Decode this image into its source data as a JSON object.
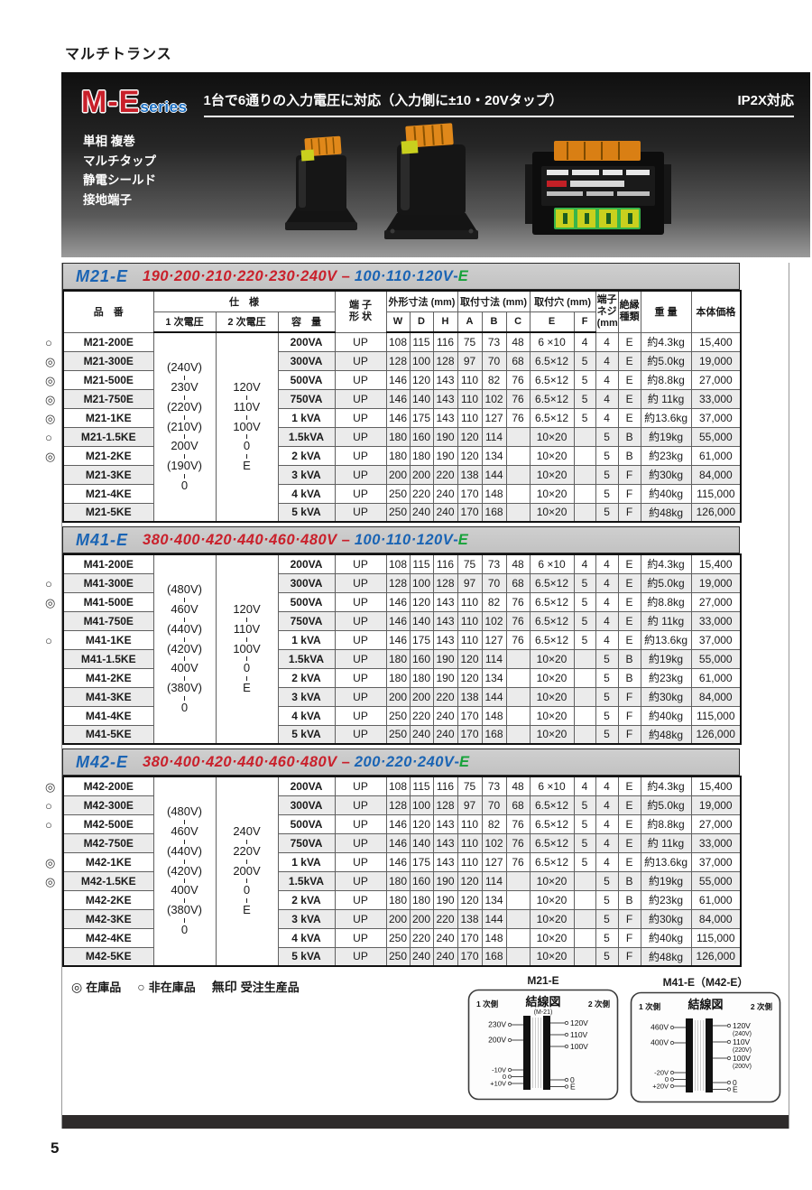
{
  "page": {
    "title": "マルチトランス",
    "page_number": "5"
  },
  "hero": {
    "logo_main": "M-E",
    "logo_sub": "series",
    "tagline": "1台で6通りの入力電圧に対応（入力側に±10・20Vタップ）",
    "ip": "IP2X対応",
    "features": [
      "単相 複巻",
      "マルチタップ",
      "静電シールド",
      "接地端子"
    ]
  },
  "columns": {
    "part": "品　番",
    "spec": "仕　様",
    "v1": "1 次電圧",
    "v2": "2 次電圧",
    "cap": "容　量",
    "terminal_l1": "端 子",
    "terminal_l2": "形 状",
    "dim": "外形寸法 (mm)",
    "w": "W",
    "d": "D",
    "h": "H",
    "mount": "取付寸法 (mm)",
    "a": "A",
    "b": "B",
    "c": "C",
    "hole": "取付穴 (mm)",
    "e": "E",
    "f": "F",
    "screw_l1": "端子",
    "screw_l2": "ネジ",
    "screw_l3": "(mm)",
    "ins_l1": "絶縁",
    "ins_l2": "種類",
    "weight": "重 量",
    "price": "本体価格"
  },
  "tables": [
    {
      "model": "M21-E",
      "primary_range": "190·200·210·220·230·240V",
      "secondary_range": "100·110·120V",
      "suffix": "E",
      "primary_taps": [
        "(240V)",
        "230V",
        "(220V)",
        "(210V)",
        "200V",
        "(190V)",
        "0"
      ],
      "secondary_taps": [
        "120V",
        "110V",
        "100V",
        "0",
        "E"
      ],
      "rows": [
        {
          "mark": "○",
          "part": "M21-200E",
          "cap": "200VA",
          "term": "UP",
          "w": "108",
          "d": "115",
          "h": "116",
          "a": "75",
          "b": "73",
          "c": "48",
          "e": "6 ×10",
          "f": "4",
          "screw": "4",
          "ins": "E",
          "weight": "約4.3kg",
          "price": "15,400"
        },
        {
          "mark": "◎",
          "part": "M21-300E",
          "cap": "300VA",
          "term": "UP",
          "w": "128",
          "d": "100",
          "h": "128",
          "a": "97",
          "b": "70",
          "c": "68",
          "e": "6.5×12",
          "f": "5",
          "screw": "4",
          "ins": "E",
          "weight": "約5.0kg",
          "price": "19,000"
        },
        {
          "mark": "◎",
          "part": "M21-500E",
          "cap": "500VA",
          "term": "UP",
          "w": "146",
          "d": "120",
          "h": "143",
          "a": "110",
          "b": "82",
          "c": "76",
          "e": "6.5×12",
          "f": "5",
          "screw": "4",
          "ins": "E",
          "weight": "約8.8kg",
          "price": "27,000"
        },
        {
          "mark": "◎",
          "part": "M21-750E",
          "cap": "750VA",
          "term": "UP",
          "w": "146",
          "d": "140",
          "h": "143",
          "a": "110",
          "b": "102",
          "c": "76",
          "e": "6.5×12",
          "f": "5",
          "screw": "4",
          "ins": "E",
          "weight": "約 11kg",
          "price": "33,000"
        },
        {
          "mark": "◎",
          "part": "M21-1KE",
          "cap": "1 kVA",
          "term": "UP",
          "w": "146",
          "d": "175",
          "h": "143",
          "a": "110",
          "b": "127",
          "c": "76",
          "e": "6.5×12",
          "f": "5",
          "screw": "4",
          "ins": "E",
          "weight": "約13.6kg",
          "price": "37,000"
        },
        {
          "mark": "○",
          "part": "M21-1.5KE",
          "cap": "1.5kVA",
          "term": "UP",
          "w": "180",
          "d": "160",
          "h": "190",
          "a": "120",
          "b": "114",
          "c": "",
          "e": "10×20",
          "f": "",
          "screw": "5",
          "ins": "B",
          "weight": "約19kg",
          "price": "55,000"
        },
        {
          "mark": "◎",
          "part": "M21-2KE",
          "cap": "2 kVA",
          "term": "UP",
          "w": "180",
          "d": "180",
          "h": "190",
          "a": "120",
          "b": "134",
          "c": "",
          "e": "10×20",
          "f": "",
          "screw": "5",
          "ins": "B",
          "weight": "約23kg",
          "price": "61,000"
        },
        {
          "mark": "",
          "part": "M21-3KE",
          "cap": "3 kVA",
          "term": "UP",
          "w": "200",
          "d": "200",
          "h": "220",
          "a": "138",
          "b": "144",
          "c": "",
          "e": "10×20",
          "f": "",
          "screw": "5",
          "ins": "F",
          "weight": "約30kg",
          "price": "84,000"
        },
        {
          "mark": "",
          "part": "M21-4KE",
          "cap": "4 kVA",
          "term": "UP",
          "w": "250",
          "d": "220",
          "h": "240",
          "a": "170",
          "b": "148",
          "c": "",
          "e": "10×20",
          "f": "",
          "screw": "5",
          "ins": "F",
          "weight": "約40kg",
          "price": "115,000"
        },
        {
          "mark": "",
          "part": "M21-5KE",
          "cap": "5 kVA",
          "term": "UP",
          "w": "250",
          "d": "240",
          "h": "240",
          "a": "170",
          "b": "168",
          "c": "",
          "e": "10×20",
          "f": "",
          "screw": "5",
          "ins": "F",
          "weight": "約48kg",
          "price": "126,000"
        }
      ]
    },
    {
      "model": "M41-E",
      "primary_range": "380·400·420·440·460·480V",
      "secondary_range": "100·110·120V",
      "suffix": "E",
      "primary_taps": [
        "(480V)",
        "460V",
        "(440V)",
        "(420V)",
        "400V",
        "(380V)",
        "0"
      ],
      "secondary_taps": [
        "120V",
        "110V",
        "100V",
        "0",
        "E"
      ],
      "rows": [
        {
          "mark": "",
          "part": "M41-200E",
          "cap": "200VA",
          "term": "UP",
          "w": "108",
          "d": "115",
          "h": "116",
          "a": "75",
          "b": "73",
          "c": "48",
          "e": "6 ×10",
          "f": "4",
          "screw": "4",
          "ins": "E",
          "weight": "約4.3kg",
          "price": "15,400"
        },
        {
          "mark": "○",
          "part": "M41-300E",
          "cap": "300VA",
          "term": "UP",
          "w": "128",
          "d": "100",
          "h": "128",
          "a": "97",
          "b": "70",
          "c": "68",
          "e": "6.5×12",
          "f": "5",
          "screw": "4",
          "ins": "E",
          "weight": "約5.0kg",
          "price": "19,000"
        },
        {
          "mark": "◎",
          "part": "M41-500E",
          "cap": "500VA",
          "term": "UP",
          "w": "146",
          "d": "120",
          "h": "143",
          "a": "110",
          "b": "82",
          "c": "76",
          "e": "6.5×12",
          "f": "5",
          "screw": "4",
          "ins": "E",
          "weight": "約8.8kg",
          "price": "27,000"
        },
        {
          "mark": "",
          "part": "M41-750E",
          "cap": "750VA",
          "term": "UP",
          "w": "146",
          "d": "140",
          "h": "143",
          "a": "110",
          "b": "102",
          "c": "76",
          "e": "6.5×12",
          "f": "5",
          "screw": "4",
          "ins": "E",
          "weight": "約 11kg",
          "price": "33,000"
        },
        {
          "mark": "○",
          "part": "M41-1KE",
          "cap": "1 kVA",
          "term": "UP",
          "w": "146",
          "d": "175",
          "h": "143",
          "a": "110",
          "b": "127",
          "c": "76",
          "e": "6.5×12",
          "f": "5",
          "screw": "4",
          "ins": "E",
          "weight": "約13.6kg",
          "price": "37,000"
        },
        {
          "mark": "",
          "part": "M41-1.5KE",
          "cap": "1.5kVA",
          "term": "UP",
          "w": "180",
          "d": "160",
          "h": "190",
          "a": "120",
          "b": "114",
          "c": "",
          "e": "10×20",
          "f": "",
          "screw": "5",
          "ins": "B",
          "weight": "約19kg",
          "price": "55,000"
        },
        {
          "mark": "",
          "part": "M41-2KE",
          "cap": "2 kVA",
          "term": "UP",
          "w": "180",
          "d": "180",
          "h": "190",
          "a": "120",
          "b": "134",
          "c": "",
          "e": "10×20",
          "f": "",
          "screw": "5",
          "ins": "B",
          "weight": "約23kg",
          "price": "61,000"
        },
        {
          "mark": "",
          "part": "M41-3KE",
          "cap": "3 kVA",
          "term": "UP",
          "w": "200",
          "d": "200",
          "h": "220",
          "a": "138",
          "b": "144",
          "c": "",
          "e": "10×20",
          "f": "",
          "screw": "5",
          "ins": "F",
          "weight": "約30kg",
          "price": "84,000"
        },
        {
          "mark": "",
          "part": "M41-4KE",
          "cap": "4 kVA",
          "term": "UP",
          "w": "250",
          "d": "220",
          "h": "240",
          "a": "170",
          "b": "148",
          "c": "",
          "e": "10×20",
          "f": "",
          "screw": "5",
          "ins": "F",
          "weight": "約40kg",
          "price": "115,000"
        },
        {
          "mark": "",
          "part": "M41-5KE",
          "cap": "5 kVA",
          "term": "UP",
          "w": "250",
          "d": "240",
          "h": "240",
          "a": "170",
          "b": "168",
          "c": "",
          "e": "10×20",
          "f": "",
          "screw": "5",
          "ins": "F",
          "weight": "約48kg",
          "price": "126,000"
        }
      ]
    },
    {
      "model": "M42-E",
      "primary_range": "380·400·420·440·460·480V",
      "secondary_range": "200·220·240V",
      "suffix": "E",
      "primary_taps": [
        "(480V)",
        "460V",
        "(440V)",
        "(420V)",
        "400V",
        "(380V)",
        "0"
      ],
      "secondary_taps": [
        "240V",
        "220V",
        "200V",
        "0",
        "E"
      ],
      "rows": [
        {
          "mark": "◎",
          "part": "M42-200E",
          "cap": "200VA",
          "term": "UP",
          "w": "108",
          "d": "115",
          "h": "116",
          "a": "75",
          "b": "73",
          "c": "48",
          "e": "6 ×10",
          "f": "4",
          "screw": "4",
          "ins": "E",
          "weight": "約4.3kg",
          "price": "15,400"
        },
        {
          "mark": "○",
          "part": "M42-300E",
          "cap": "300VA",
          "term": "UP",
          "w": "128",
          "d": "100",
          "h": "128",
          "a": "97",
          "b": "70",
          "c": "68",
          "e": "6.5×12",
          "f": "5",
          "screw": "4",
          "ins": "E",
          "weight": "約5.0kg",
          "price": "19,000"
        },
        {
          "mark": "○",
          "part": "M42-500E",
          "cap": "500VA",
          "term": "UP",
          "w": "146",
          "d": "120",
          "h": "143",
          "a": "110",
          "b": "82",
          "c": "76",
          "e": "6.5×12",
          "f": "5",
          "screw": "4",
          "ins": "E",
          "weight": "約8.8kg",
          "price": "27,000"
        },
        {
          "mark": "",
          "part": "M42-750E",
          "cap": "750VA",
          "term": "UP",
          "w": "146",
          "d": "140",
          "h": "143",
          "a": "110",
          "b": "102",
          "c": "76",
          "e": "6.5×12",
          "f": "5",
          "screw": "4",
          "ins": "E",
          "weight": "約 11kg",
          "price": "33,000"
        },
        {
          "mark": "◎",
          "part": "M42-1KE",
          "cap": "1 kVA",
          "term": "UP",
          "w": "146",
          "d": "175",
          "h": "143",
          "a": "110",
          "b": "127",
          "c": "76",
          "e": "6.5×12",
          "f": "5",
          "screw": "4",
          "ins": "E",
          "weight": "約13.6kg",
          "price": "37,000"
        },
        {
          "mark": "◎",
          "part": "M42-1.5KE",
          "cap": "1.5kVA",
          "term": "UP",
          "w": "180",
          "d": "160",
          "h": "190",
          "a": "120",
          "b": "114",
          "c": "",
          "e": "10×20",
          "f": "",
          "screw": "5",
          "ins": "B",
          "weight": "約19kg",
          "price": "55,000"
        },
        {
          "mark": "",
          "part": "M42-2KE",
          "cap": "2 kVA",
          "term": "UP",
          "w": "180",
          "d": "180",
          "h": "190",
          "a": "120",
          "b": "134",
          "c": "",
          "e": "10×20",
          "f": "",
          "screw": "5",
          "ins": "B",
          "weight": "約23kg",
          "price": "61,000"
        },
        {
          "mark": "",
          "part": "M42-3KE",
          "cap": "3 kVA",
          "term": "UP",
          "w": "200",
          "d": "200",
          "h": "220",
          "a": "138",
          "b": "144",
          "c": "",
          "e": "10×20",
          "f": "",
          "screw": "5",
          "ins": "F",
          "weight": "約30kg",
          "price": "84,000"
        },
        {
          "mark": "",
          "part": "M42-4KE",
          "cap": "4 kVA",
          "term": "UP",
          "w": "250",
          "d": "220",
          "h": "240",
          "a": "170",
          "b": "148",
          "c": "",
          "e": "10×20",
          "f": "",
          "screw": "5",
          "ins": "F",
          "weight": "約40kg",
          "price": "115,000"
        },
        {
          "mark": "",
          "part": "M42-5KE",
          "cap": "5 kVA",
          "term": "UP",
          "w": "250",
          "d": "240",
          "h": "240",
          "a": "170",
          "b": "168",
          "c": "",
          "e": "10×20",
          "f": "",
          "screw": "5",
          "ins": "F",
          "weight": "約48kg",
          "price": "126,000"
        }
      ]
    }
  ],
  "legend": [
    {
      "mark": "◎",
      "label": "在庫品"
    },
    {
      "mark": "○",
      "label": "非在庫品"
    },
    {
      "mark": "無印",
      "label": "受注生産品"
    }
  ],
  "diagrams": [
    {
      "title": "M21-E",
      "heading": "結線図",
      "sub": "(M-21)",
      "left_label": "1 次側",
      "right_label": "2 次側",
      "left_top": [
        "230V",
        "200V"
      ],
      "left_bottom": [
        "-10V",
        "0",
        "+10V"
      ],
      "right_top": [
        [
          "120V"
        ],
        [
          "110V"
        ],
        [
          "100V"
        ]
      ],
      "right_bottom": [
        "0",
        "E"
      ]
    },
    {
      "title": "M41-E（M42-E）",
      "heading": "結線図",
      "sub": "",
      "left_label": "1 次側",
      "right_label": "2 次側",
      "left_top": [
        "460V",
        "400V"
      ],
      "left_bottom": [
        "-20V",
        "0",
        "+20V"
      ],
      "right_top": [
        [
          "120V",
          "(240V)"
        ],
        [
          "110V",
          "(220V)"
        ],
        [
          "100V",
          "(200V)"
        ]
      ],
      "right_bottom": [
        "0",
        "E"
      ]
    }
  ]
}
